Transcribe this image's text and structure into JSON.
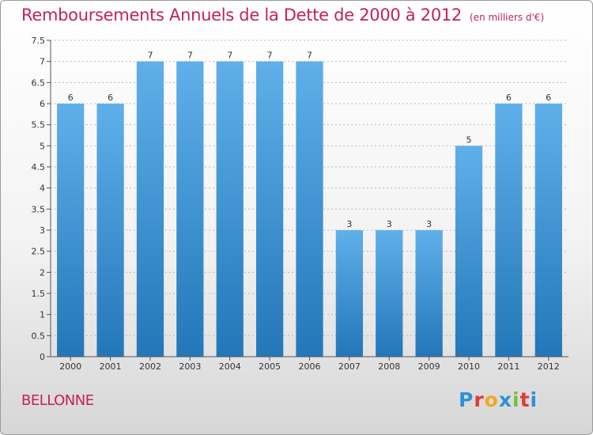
{
  "header": {
    "title": "Remboursements Annuels de la Dette de 2000 à 2012",
    "subtitle": "(en milliers d'€)"
  },
  "footer": {
    "place": "BELLONNE",
    "logo_letters": [
      "P",
      "r",
      "o",
      "x",
      "i",
      "t",
      "i"
    ],
    "logo_colors": [
      "#2f8fd8",
      "#e23b2f",
      "#f2a81d",
      "#2f8fd8",
      "#7bbf3a",
      "#e23b2f",
      "#2f8fd8"
    ]
  },
  "colors": {
    "bar_light": "#5fb0ea",
    "bar_dark": "#2377b8",
    "grid": "#bbbbbb"
  },
  "chart_data": {
    "type": "bar",
    "categories": [
      "2000",
      "2001",
      "2002",
      "2003",
      "2004",
      "2005",
      "2006",
      "2007",
      "2008",
      "2009",
      "2010",
      "2011",
      "2012"
    ],
    "values": [
      6,
      6,
      7,
      7,
      7,
      7,
      7,
      3,
      3,
      3,
      5,
      6,
      6
    ],
    "ylim": [
      0,
      7.5
    ],
    "yticks": [
      "0",
      "0.5",
      "1",
      "1.5",
      "2",
      "2.5",
      "3",
      "3.5",
      "4",
      "4.5",
      "5",
      "5.5",
      "6",
      "6.5",
      "7",
      "7.5"
    ],
    "grid": true,
    "data_labels": true
  }
}
